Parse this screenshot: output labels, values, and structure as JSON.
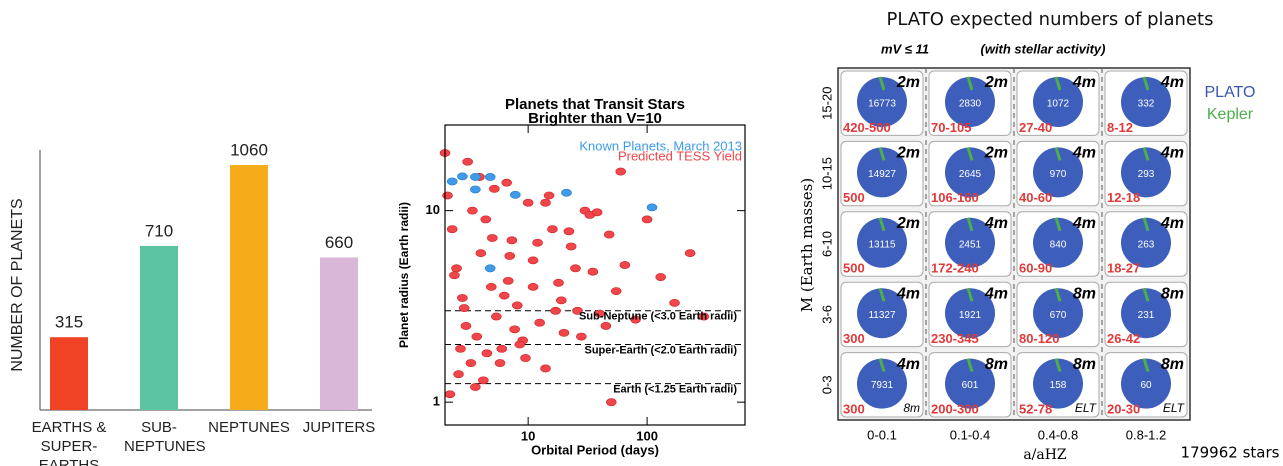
{
  "chart_data": [
    {
      "type": "bar",
      "y_label": "NUMBER OF PLANETS",
      "categories": [
        "EARTHS & SUPER-EARTHS",
        "SUB-NEPTUNES",
        "NEPTUNES",
        "JUPITERS"
      ],
      "values": [
        315,
        710,
        1060,
        660
      ],
      "colors": [
        "#f04326",
        "#5cc3a2",
        "#f6ab1a",
        "#d9b7d8"
      ],
      "ylim": [
        0,
        1125
      ]
    },
    {
      "type": "scatter",
      "title": "Planets that Transit Stars Brighter than V=10",
      "x_label": "Orbital Period (days)",
      "y_label": "Planet radius (Earth radii)",
      "xscale": "log",
      "yscale": "log",
      "xlim": [
        2,
        665
      ],
      "ylim": [
        0.76,
        28
      ],
      "xticks": [
        10,
        100
      ],
      "yticks": [
        1,
        10
      ],
      "series": [
        {
          "name": "Known Planets, March 2013",
          "color": "#3d9be9",
          "x": [
            2.3,
            2.8,
            3.6,
            4.8,
            7.8,
            21,
            110,
            4.8,
            3.6
          ],
          "values": [
            14.2,
            15.1,
            15,
            15,
            12.1,
            12.4,
            10.4,
            5.0,
            12.9
          ]
        },
        {
          "name": "Predicted TESS Yield",
          "color": "#f0454a",
          "x": [
            2.1,
            2.3,
            2.5,
            2.8,
            3.0,
            3.3,
            3.6,
            4.0,
            4.4,
            4.9,
            5.4,
            6.0,
            6.6,
            7.3,
            8.1,
            9.0,
            10,
            11,
            12.5,
            14,
            16,
            18,
            20,
            23,
            26,
            30,
            35,
            40,
            48,
            55,
            65,
            80,
            100,
            130,
            170,
            230,
            300,
            2.2,
            2.6,
            3.1,
            3.7,
            4.5,
            5.2,
            6.3,
            7.7,
            9.5,
            12,
            15,
            19,
            25,
            33,
            45,
            60,
            2.4,
            2.9,
            3.4,
            4.2,
            5.0,
            5.8,
            7.0,
            8.5,
            11,
            14,
            17,
            22,
            28,
            38,
            50,
            2.0,
            2.7,
            3.9,
            6.8
          ],
          "values": [
            12,
            8,
            5,
            3.5,
            2.5,
            1.6,
            1.2,
            6,
            9,
            4,
            2.8,
            1.9,
            14,
            7,
            3.2,
            2.1,
            11,
            5.5,
            2.6,
            1.5,
            8,
            4.2,
            2.3,
            6.5,
            3.0,
            10,
            4.8,
            2.9,
            7.5,
            3.8,
            5.2,
            2.7,
            9,
            4.5,
            3.3,
            6,
            2.8,
            1.1,
            1.4,
            18,
            2.2,
            1.8,
            13,
            3.6,
            2.4,
            1.7,
            6.8,
            12,
            3.4,
            5.0,
            9.5,
            2.5,
            16,
            4.6,
            3.1,
            10,
            1.3,
            7.2,
            1.6,
            5.8,
            2.0,
            4.0,
            11,
            3.0,
            7.8,
            2.2,
            9.8,
            1.0,
            20,
            1.9,
            15,
            4.3
          ]
        }
      ],
      "reference_lines": [
        {
          "value": 3.0,
          "label": "Sub-Neptune (<3.0 Earth radii)"
        },
        {
          "value": 2.0,
          "label": "Super-Earth (<2.0 Earth radii)"
        },
        {
          "value": 1.25,
          "label": "Earth (<1.25 Earth radii)"
        }
      ]
    }
  ],
  "plato": {
    "title": "PLATO expected numbers of planets",
    "magnitude": "mV ≤ 11",
    "note": "(with stellar activity)",
    "legend": [
      "PLATO",
      "Kepler"
    ],
    "y_label": "M (Earth masses)",
    "x_label": "a/aHZ",
    "total": "179962 stars",
    "rows": [
      "15-20",
      "10-15",
      "6-10",
      "3-6",
      "0-3"
    ],
    "columns": [
      "0-0.1",
      "0.1-0.4",
      "0.4-0.8",
      "0.8-1.2"
    ],
    "cells": [
      [
        {
          "telescope": "2m",
          "count": 16773,
          "range": "420-500"
        },
        {
          "telescope": "2m",
          "count": 2830,
          "range": "70-105"
        },
        {
          "telescope": "4m",
          "count": 1072,
          "range": "27-40"
        },
        {
          "telescope": "4m",
          "count": 332,
          "range": "8-12"
        }
      ],
      [
        {
          "telescope": "2m",
          "count": 14927,
          "range": "500"
        },
        {
          "telescope": "2m",
          "count": 2645,
          "range": "106-160"
        },
        {
          "telescope": "4m",
          "count": 970,
          "range": "40-60"
        },
        {
          "telescope": "4m",
          "count": 293,
          "range": "12-18"
        }
      ],
      [
        {
          "telescope": "2m",
          "count": 13115,
          "range": "500"
        },
        {
          "telescope": "4m",
          "count": 2451,
          "range": "172-240"
        },
        {
          "telescope": "4m",
          "count": 840,
          "range": "60-90"
        },
        {
          "telescope": "4m",
          "count": 263,
          "range": "18-27"
        }
      ],
      [
        {
          "telescope": "4m",
          "count": 11327,
          "range": "300"
        },
        {
          "telescope": "4m",
          "count": 1921,
          "range": "230-345"
        },
        {
          "telescope": "8m",
          "count": 670,
          "range": "80-120"
        },
        {
          "telescope": "8m",
          "count": 231,
          "range": "26-42"
        }
      ],
      [
        {
          "telescope": "4m",
          "count": 7931,
          "range": "300",
          "extra": "8m"
        },
        {
          "telescope": "8m",
          "count": 601,
          "range": "200-300"
        },
        {
          "telescope": "8m",
          "count": 158,
          "range": "52-78",
          "extra": "ELT"
        },
        {
          "telescope": "8m",
          "count": 60,
          "range": "20-30",
          "extra": "ELT"
        }
      ]
    ]
  }
}
